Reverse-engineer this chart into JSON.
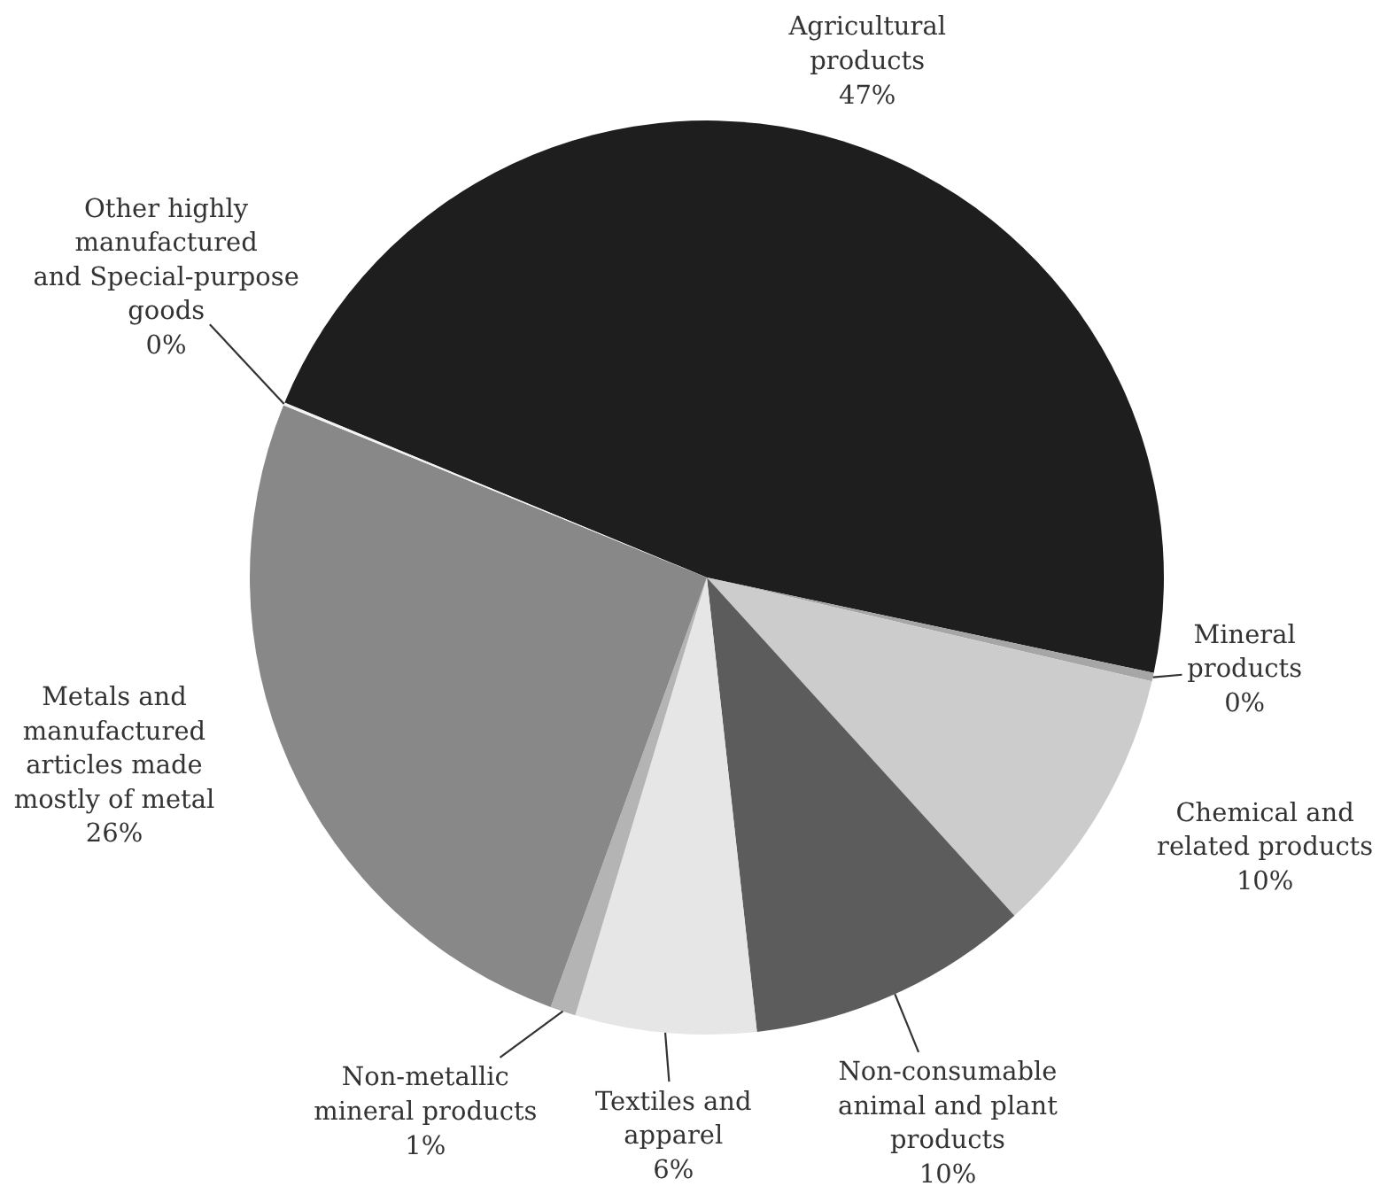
{
  "chart_data": {
    "type": "pie",
    "categories": [
      "Agricultural products",
      "Mineral products",
      "Chemical and related products",
      "Non-consumable animal and plant products",
      "Textiles and apparel",
      "Non-metallic mineral products",
      "Metals and manufactured articles made mostly of metal",
      "Other highly manufactured and Special-purpose goods"
    ],
    "values": [
      47.1,
      0.3,
      9.6,
      10.0,
      6.4,
      0.9,
      25.6,
      0.1
    ],
    "colors": [
      "#1e1e1e",
      "#a6a6a6",
      "#cccccc",
      "#5c5c5c",
      "#e6e6e6",
      "#b4b4b4",
      "#888888",
      "#f2f2f2"
    ],
    "value_labels": [
      "47%",
      "0%",
      "10%",
      "10%",
      "6%",
      "1%",
      "26%",
      "0%"
    ]
  }
}
